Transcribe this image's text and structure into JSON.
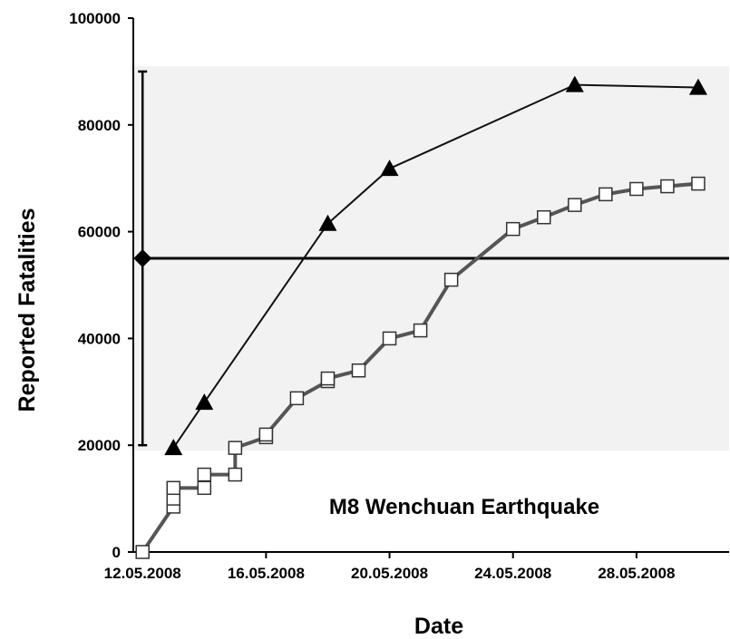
{
  "chart_data": {
    "type": "line",
    "title": "",
    "xlabel": "Date",
    "ylabel": "Reported Fatalities",
    "annotation": "M8 Wenchuan Earthquake",
    "xlim": [
      "2008-05-12",
      "2008-05-31"
    ],
    "ylim": [
      0,
      100000
    ],
    "y_ticks": [
      "0",
      "20000",
      "40000",
      "60000",
      "80000",
      "100000"
    ],
    "x_ticks": [
      "12.05.2008",
      "16.05.2008",
      "20.05.2008",
      "24.05.2008",
      "28.05.2008"
    ],
    "x_tick_dates": [
      "2008-05-12",
      "2008-05-16",
      "2008-05-20",
      "2008-05-24",
      "2008-05-28"
    ],
    "grid": false,
    "estimate_band": {
      "low": 19000,
      "high": 91000,
      "color": "#f2f2f2"
    },
    "estimate_point": {
      "date": "2008-05-12",
      "value": 55000,
      "error_low": 20000,
      "error_high": 90000,
      "line_end_date": "2008-05-31",
      "line_end_value": 55000
    },
    "series": [
      {
        "marker": "triangle",
        "color": "#111111",
        "points": [
          {
            "x": "2008-05-13",
            "y": 19500
          },
          {
            "x": "2008-05-14",
            "y": 28000
          },
          {
            "x": "2008-05-18",
            "y": 61500
          },
          {
            "x": "2008-05-20",
            "y": 71800
          },
          {
            "x": "2008-05-26",
            "y": 87500
          },
          {
            "x": "2008-05-30",
            "y": 87000
          }
        ]
      },
      {
        "marker": "square-open",
        "color": "#555555",
        "points": [
          {
            "x": "2008-05-12",
            "y": 0
          },
          {
            "x": "2008-05-13",
            "y": 8500
          },
          {
            "x": "2008-05-13",
            "y": 10000
          },
          {
            "x": "2008-05-13",
            "y": 12000
          },
          {
            "x": "2008-05-14",
            "y": 12000
          },
          {
            "x": "2008-05-14",
            "y": 14500
          },
          {
            "x": "2008-05-15",
            "y": 14500
          },
          {
            "x": "2008-05-15",
            "y": 19500
          },
          {
            "x": "2008-05-16",
            "y": 21500
          },
          {
            "x": "2008-05-16",
            "y": 22000
          },
          {
            "x": "2008-05-17",
            "y": 28800
          },
          {
            "x": "2008-05-18",
            "y": 32000
          },
          {
            "x": "2008-05-18",
            "y": 32500
          },
          {
            "x": "2008-05-19",
            "y": 34000
          },
          {
            "x": "2008-05-20",
            "y": 40000
          },
          {
            "x": "2008-05-21",
            "y": 41500
          },
          {
            "x": "2008-05-22",
            "y": 51000
          },
          {
            "x": "2008-05-24",
            "y": 60500
          },
          {
            "x": "2008-05-25",
            "y": 62700
          },
          {
            "x": "2008-05-26",
            "y": 65000
          },
          {
            "x": "2008-05-27",
            "y": 67000
          },
          {
            "x": "2008-05-28",
            "y": 68000
          },
          {
            "x": "2008-05-29",
            "y": 68500
          },
          {
            "x": "2008-05-30",
            "y": 69000
          }
        ]
      }
    ]
  }
}
